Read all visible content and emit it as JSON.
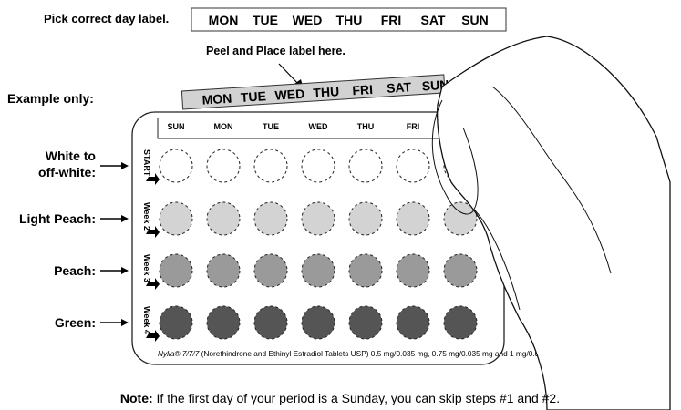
{
  "top": {
    "prompt": "Pick correct day label.",
    "days": [
      "MON",
      "TUE",
      "WED",
      "THU",
      "FRI",
      "SAT",
      "SUN"
    ]
  },
  "peel_text": "Peel and Place label here.",
  "example_label": "Example only:",
  "strip_days": [
    "MON",
    "TUE",
    "WED",
    "THU",
    "FRI",
    "SAT",
    "SUN"
  ],
  "card": {
    "header_days": [
      "SUN",
      "MON",
      "TUE",
      "WED",
      "THU",
      "FRI"
    ],
    "rows": [
      {
        "week": "START",
        "label_line1": "White to",
        "label_line2": "off-white:",
        "color": "#ffffff"
      },
      {
        "week": "Week 2",
        "label_line1": "Light Peach:",
        "label_line2": "",
        "color": "#d3d3d3"
      },
      {
        "week": "Week 3",
        "label_line1": "Peach:",
        "label_line2": "",
        "color": "#9a9a9a"
      },
      {
        "week": "Week 4",
        "label_line1": "Green:",
        "label_line2": "",
        "color": "#555555"
      }
    ],
    "footer_brand": "Nylia® 7/7/7",
    "footer_text": "(Norethindrone and Ethinyl Estradiol Tablets USP) 0.5 mg/0.035 mg, 0.75 mg/0.035 mg and 1 mg/0.035 mg"
  },
  "note": {
    "bold": "Note:",
    "text": " If the first day of your period is a Sunday, you can skip steps #1 and #2."
  }
}
